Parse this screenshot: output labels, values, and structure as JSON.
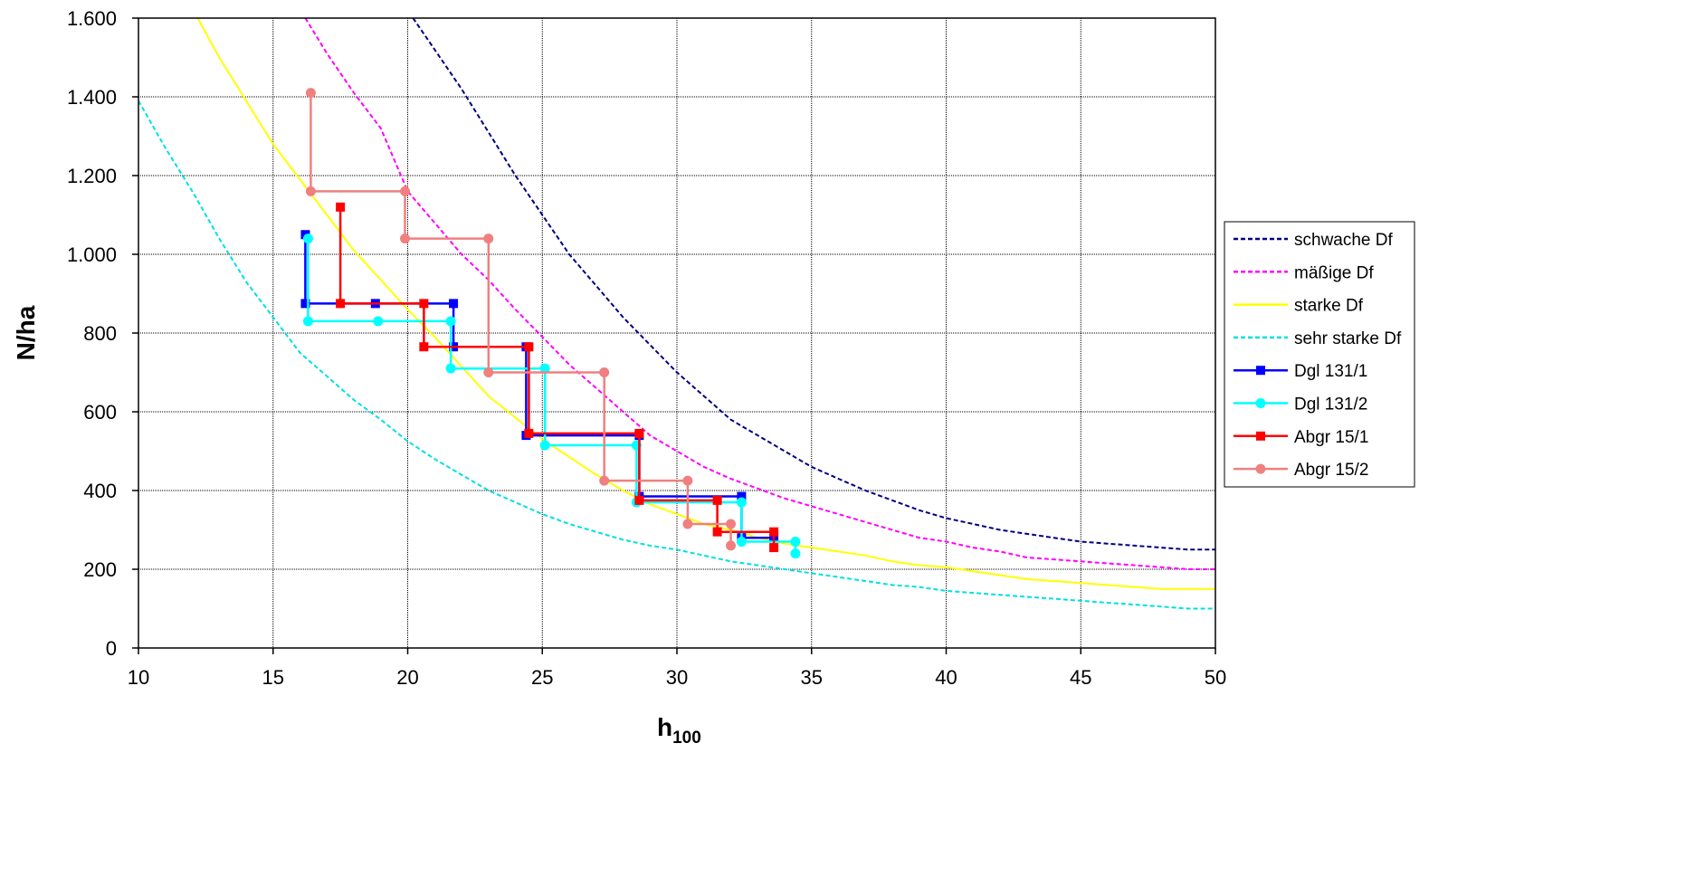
{
  "chart_data": {
    "type": "line",
    "title": "",
    "xlabel_main": "h",
    "xlabel_sub": "100",
    "ylabel": "N/ha",
    "xlim": [
      10,
      50
    ],
    "ylim": [
      0,
      1600
    ],
    "x_ticks": [
      10,
      15,
      20,
      25,
      30,
      35,
      40,
      45,
      50
    ],
    "y_ticks": [
      0,
      200,
      400,
      600,
      800,
      1000,
      1200,
      1400,
      1600
    ],
    "y_tick_labels": [
      "0",
      "200",
      "400",
      "600",
      "800",
      "1.000",
      "1.200",
      "1.400",
      "1.600"
    ],
    "grid": true,
    "legend_position": "right",
    "series": [
      {
        "name": "schwache Df",
        "color": "#000080",
        "dash": true,
        "marker": "none",
        "points": [
          [
            20.2,
            1600
          ],
          [
            21,
            1520
          ],
          [
            22,
            1420
          ],
          [
            23,
            1310
          ],
          [
            24,
            1200
          ],
          [
            25,
            1100
          ],
          [
            26,
            1000
          ],
          [
            27,
            920
          ],
          [
            28,
            840
          ],
          [
            29,
            770
          ],
          [
            30,
            700
          ],
          [
            31,
            640
          ],
          [
            32,
            580
          ],
          [
            33,
            540
          ],
          [
            34,
            500
          ],
          [
            35,
            460
          ],
          [
            36,
            430
          ],
          [
            37,
            400
          ],
          [
            38,
            375
          ],
          [
            39,
            350
          ],
          [
            40,
            330
          ],
          [
            41,
            315
          ],
          [
            42,
            300
          ],
          [
            43,
            290
          ],
          [
            44,
            280
          ],
          [
            45,
            270
          ],
          [
            46,
            265
          ],
          [
            47,
            260
          ],
          [
            48,
            255
          ],
          [
            49,
            250
          ],
          [
            50,
            250
          ]
        ]
      },
      {
        "name": "mäßige Df",
        "color": "#ff00ff",
        "dash": true,
        "marker": "none",
        "points": [
          [
            16.2,
            1600
          ],
          [
            17,
            1510
          ],
          [
            18,
            1410
          ],
          [
            19,
            1320
          ],
          [
            20,
            1160
          ],
          [
            21,
            1080
          ],
          [
            22,
            1000
          ],
          [
            23,
            935
          ],
          [
            24,
            860
          ],
          [
            25,
            790
          ],
          [
            26,
            720
          ],
          [
            27,
            660
          ],
          [
            28,
            600
          ],
          [
            29,
            540
          ],
          [
            30,
            500
          ],
          [
            31,
            460
          ],
          [
            32,
            430
          ],
          [
            33,
            405
          ],
          [
            34,
            380
          ],
          [
            35,
            360
          ],
          [
            36,
            340
          ],
          [
            37,
            320
          ],
          [
            38,
            300
          ],
          [
            39,
            280
          ],
          [
            40,
            270
          ],
          [
            41,
            255
          ],
          [
            42,
            245
          ],
          [
            43,
            230
          ],
          [
            44,
            225
          ],
          [
            45,
            220
          ],
          [
            46,
            215
          ],
          [
            47,
            210
          ],
          [
            48,
            205
          ],
          [
            49,
            200
          ],
          [
            50,
            200
          ]
        ]
      },
      {
        "name": "starke Df",
        "color": "#ffff00",
        "dash": false,
        "marker": "none",
        "points": [
          [
            12.2,
            1600
          ],
          [
            13,
            1500
          ],
          [
            14,
            1390
          ],
          [
            15,
            1280
          ],
          [
            16,
            1190
          ],
          [
            17,
            1100
          ],
          [
            18,
            1010
          ],
          [
            19,
            935
          ],
          [
            20,
            860
          ],
          [
            21,
            790
          ],
          [
            22,
            715
          ],
          [
            23,
            640
          ],
          [
            24,
            585
          ],
          [
            25,
            530
          ],
          [
            26,
            485
          ],
          [
            27,
            440
          ],
          [
            28,
            400
          ],
          [
            29,
            365
          ],
          [
            30,
            340
          ],
          [
            31,
            315
          ],
          [
            32,
            300
          ],
          [
            33,
            280
          ],
          [
            34,
            265
          ],
          [
            35,
            255
          ],
          [
            36,
            245
          ],
          [
            37,
            235
          ],
          [
            38,
            220
          ],
          [
            39,
            210
          ],
          [
            40,
            205
          ],
          [
            41,
            195
          ],
          [
            42,
            185
          ],
          [
            43,
            175
          ],
          [
            44,
            170
          ],
          [
            45,
            165
          ],
          [
            46,
            160
          ],
          [
            47,
            155
          ],
          [
            48,
            150
          ],
          [
            49,
            150
          ],
          [
            50,
            150
          ]
        ]
      },
      {
        "name": "sehr starke Df",
        "color": "#00e0e0",
        "dash": true,
        "marker": "none",
        "points": [
          [
            10,
            1390
          ],
          [
            11,
            1270
          ],
          [
            12,
            1160
          ],
          [
            13,
            1040
          ],
          [
            14,
            930
          ],
          [
            15,
            840
          ],
          [
            16,
            750
          ],
          [
            17,
            690
          ],
          [
            18,
            630
          ],
          [
            19,
            580
          ],
          [
            20,
            525
          ],
          [
            21,
            480
          ],
          [
            22,
            440
          ],
          [
            23,
            400
          ],
          [
            24,
            370
          ],
          [
            25,
            340
          ],
          [
            26,
            315
          ],
          [
            27,
            295
          ],
          [
            28,
            275
          ],
          [
            29,
            260
          ],
          [
            30,
            250
          ],
          [
            31,
            235
          ],
          [
            32,
            220
          ],
          [
            33,
            210
          ],
          [
            34,
            200
          ],
          [
            35,
            190
          ],
          [
            36,
            180
          ],
          [
            37,
            170
          ],
          [
            38,
            160
          ],
          [
            39,
            155
          ],
          [
            40,
            145
          ],
          [
            41,
            140
          ],
          [
            42,
            135
          ],
          [
            43,
            130
          ],
          [
            44,
            125
          ],
          [
            45,
            120
          ],
          [
            46,
            115
          ],
          [
            47,
            110
          ],
          [
            48,
            105
          ],
          [
            49,
            100
          ],
          [
            50,
            100
          ]
        ]
      },
      {
        "name": "Dgl 131/1",
        "color": "#0000ff",
        "dash": false,
        "marker": "square",
        "points": [
          [
            16.2,
            1050
          ],
          [
            16.2,
            875
          ],
          [
            18.8,
            875
          ],
          [
            21.7,
            875
          ],
          [
            21.7,
            765
          ],
          [
            24.4,
            765
          ],
          [
            24.4,
            540
          ],
          [
            28.6,
            540
          ],
          [
            28.6,
            385
          ],
          [
            32.4,
            385
          ],
          [
            32.4,
            280
          ],
          [
            33.6,
            280
          ]
        ]
      },
      {
        "name": "Dgl 131/2",
        "color": "#00ffff",
        "dash": false,
        "marker": "circle",
        "points": [
          [
            16.3,
            1040
          ],
          [
            16.3,
            830
          ],
          [
            18.9,
            830
          ],
          [
            21.6,
            830
          ],
          [
            21.6,
            710
          ],
          [
            25.1,
            710
          ],
          [
            25.1,
            515
          ],
          [
            28.5,
            515
          ],
          [
            28.5,
            370
          ],
          [
            32.4,
            370
          ],
          [
            32.4,
            270
          ],
          [
            34.4,
            270
          ],
          [
            34.4,
            240
          ]
        ]
      },
      {
        "name": "Abgr 15/1",
        "color": "#ff0000",
        "dash": false,
        "marker": "square",
        "points": [
          [
            17.5,
            1120
          ],
          [
            17.5,
            875
          ],
          [
            20.6,
            875
          ],
          [
            20.6,
            765
          ],
          [
            24.5,
            765
          ],
          [
            24.5,
            545
          ],
          [
            28.6,
            545
          ],
          [
            28.6,
            375
          ],
          [
            31.5,
            375
          ],
          [
            31.5,
            295
          ],
          [
            33.6,
            295
          ],
          [
            33.6,
            255
          ]
        ]
      },
      {
        "name": "Abgr 15/2",
        "color": "#f08080",
        "dash": false,
        "marker": "circle",
        "points": [
          [
            16.4,
            1410
          ],
          [
            16.4,
            1160
          ],
          [
            19.9,
            1160
          ],
          [
            19.9,
            1040
          ],
          [
            23,
            1040
          ],
          [
            23,
            700
          ],
          [
            27.3,
            700
          ],
          [
            27.3,
            425
          ],
          [
            30.4,
            425
          ],
          [
            30.4,
            315
          ],
          [
            32,
            315
          ],
          [
            32,
            260
          ]
        ]
      }
    ]
  }
}
